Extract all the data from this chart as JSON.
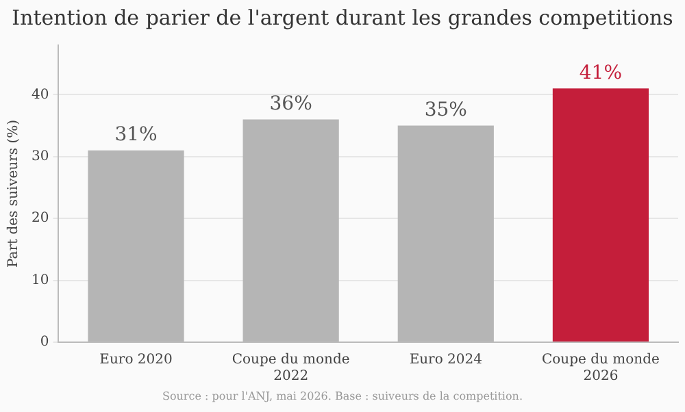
{
  "chart_data": {
    "type": "bar",
    "title": "Intention de parier de l'argent durant les grandes competitions",
    "ylabel": "Part des suiveurs (%)",
    "categories": [
      "Euro 2020",
      "Coupe du monde 2022",
      "Euro 2024",
      "Coupe du monde 2026"
    ],
    "values": [
      31,
      36,
      35,
      41
    ],
    "colors": [
      "#b5b5b5",
      "#b5b5b5",
      "#b5b5b5",
      "#c41e3a"
    ],
    "value_labels": [
      "31%",
      "36%",
      "35%",
      "41%"
    ],
    "ylim": [
      0,
      48
    ],
    "yticks": [
      0,
      10,
      20,
      30,
      40
    ],
    "grid": "y",
    "legend": false,
    "annotations": [
      "Source : pour l'ANJ, mai 2026. Base : suiveurs de la competition."
    ]
  }
}
